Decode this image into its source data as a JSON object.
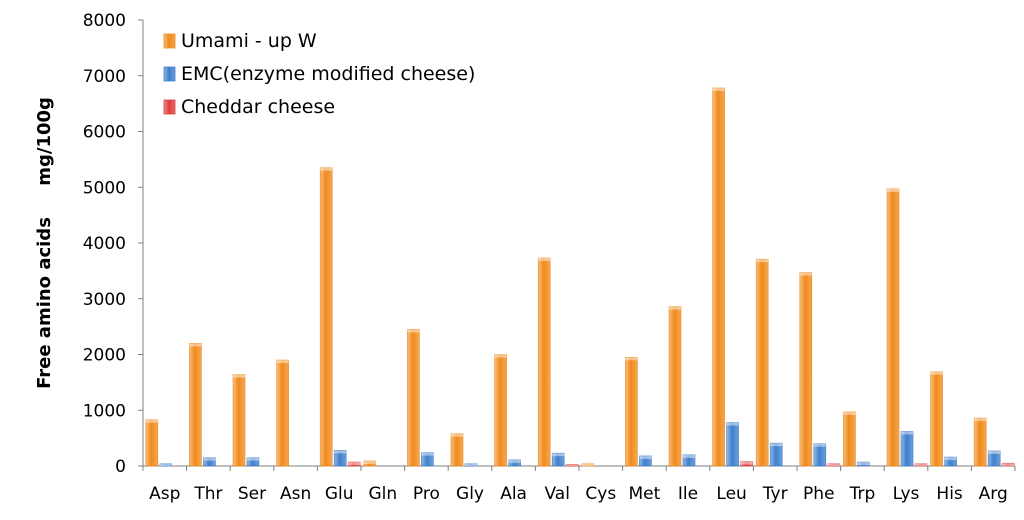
{
  "chart_data": {
    "type": "bar",
    "categories": [
      "Asp",
      "Thr",
      "Ser",
      "Asn",
      "Glu",
      "Gln",
      "Pro",
      "Gly",
      "Ala",
      "Val",
      "Cys",
      "Met",
      "Ile",
      "Leu",
      "Tyr",
      "Phe",
      "Trp",
      "Lys",
      "His",
      "Arg"
    ],
    "series": [
      {
        "name": "Umami - up W",
        "color": "#f08a1c",
        "values": [
          830,
          2200,
          1640,
          1900,
          5350,
          90,
          2450,
          580,
          2000,
          3730,
          40,
          1950,
          2860,
          6780,
          3710,
          3470,
          970,
          4970,
          1690,
          860
        ]
      },
      {
        "name": "EMC(enzyme modified cheese)",
        "color": "#3f7fcc",
        "values": [
          40,
          150,
          150,
          0,
          280,
          0,
          240,
          40,
          110,
          230,
          0,
          180,
          200,
          780,
          410,
          400,
          70,
          620,
          160,
          270
        ]
      },
      {
        "name": "Cheddar cheese",
        "color": "#e03a3a",
        "values": [
          0,
          0,
          0,
          0,
          70,
          0,
          0,
          0,
          0,
          20,
          0,
          0,
          0,
          80,
          0,
          40,
          0,
          40,
          0,
          50
        ]
      }
    ],
    "ylabel": "Free amino acids     mg/100g",
    "ylim": [
      0,
      8000
    ],
    "yticks": [
      "0",
      "1000",
      "2000",
      "3000",
      "4000",
      "5000",
      "6000",
      "7000",
      "8000"
    ],
    "legend_position": "top-left",
    "grid": false
  }
}
